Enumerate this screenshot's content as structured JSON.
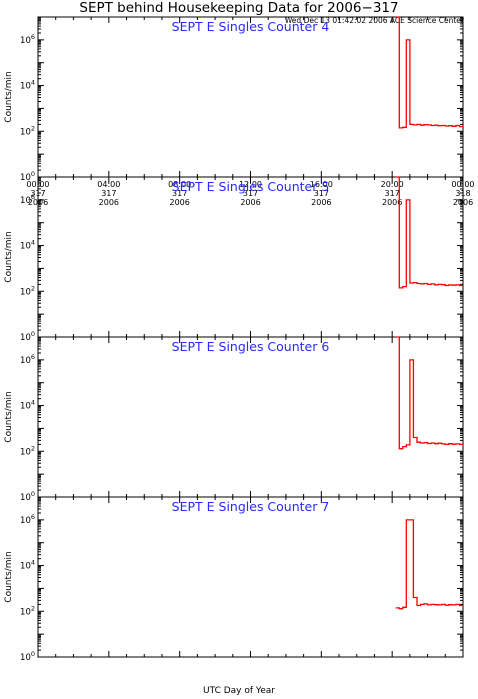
{
  "header": {
    "title": "SEPT behind Housekeeping Data for 2006−317",
    "subtitle": "Wed Dec 13 01:42:02 2006 ACE Science Center"
  },
  "x_axis_title": "UTC Day of Year",
  "colors": {
    "series": "#ff0000",
    "panel_title": "#2a2aff",
    "axes": "#000000"
  },
  "chart_data": [
    {
      "type": "line",
      "title": "SEPT E Singles Counter 4",
      "ylabel": "Counts/min",
      "yscale": "log",
      "ylim": [
        1,
        10000000
      ],
      "ytick_labels": [
        "10^0",
        "10^2",
        "10^4",
        "10^6"
      ],
      "xlim": [
        0,
        24
      ],
      "x_ticks": [
        {
          "time": "00:00",
          "doy": "317",
          "year": "2006"
        },
        {
          "time": "04:00",
          "doy": "317",
          "year": "2006"
        },
        {
          "time": "08:00",
          "doy": "317",
          "year": "2006"
        },
        {
          "time": "12:00",
          "doy": "317",
          "year": "2006"
        },
        {
          "time": "16:00",
          "doy": "317",
          "year": "2006"
        },
        {
          "time": "20:00",
          "doy": "317",
          "year": "2006"
        },
        {
          "time": "00:00",
          "doy": "318",
          "year": "2006"
        }
      ],
      "x": [
        20.2,
        20.4,
        20.6,
        20.8,
        21.0,
        21.2,
        21.4,
        21.6,
        21.8,
        22.0,
        22.2,
        22.4,
        22.6,
        22.8,
        23.0,
        23.2,
        23.4,
        23.6,
        23.8
      ],
      "y": [
        10000000,
        140,
        150,
        1000000,
        200,
        190,
        200,
        185,
        195,
        190,
        180,
        185,
        175,
        180,
        170,
        175,
        165,
        180,
        160
      ]
    },
    {
      "type": "line",
      "title": "SEPT E Singles Counter 5",
      "ylabel": "Counts/min",
      "yscale": "log",
      "ylim": [
        1,
        10000000
      ],
      "ytick_labels": [
        "10^0",
        "10^2",
        "10^4",
        "10^6"
      ],
      "xlim": [
        0,
        24
      ],
      "x_ticks": [],
      "x": [
        20.2,
        20.4,
        20.6,
        20.8,
        21.0,
        21.2,
        21.4,
        21.6,
        21.8,
        22.0,
        22.2,
        22.4,
        22.6,
        22.8,
        23.0,
        23.2,
        23.4,
        23.6,
        23.8
      ],
      "y": [
        10000000,
        140,
        160,
        1000000,
        230,
        240,
        220,
        210,
        220,
        200,
        210,
        190,
        200,
        195,
        180,
        190,
        185,
        190,
        180
      ]
    },
    {
      "type": "line",
      "title": "SEPT E Singles Counter 6",
      "ylabel": "Counts/min",
      "yscale": "log",
      "ylim": [
        1,
        10000000
      ],
      "ytick_labels": [
        "10^0",
        "10^2",
        "10^4",
        "10^6"
      ],
      "xlim": [
        0,
        24
      ],
      "x_ticks": [],
      "x": [
        20.2,
        20.4,
        20.6,
        20.8,
        21.0,
        21.2,
        21.4,
        21.6,
        21.8,
        22.0,
        22.2,
        22.4,
        22.6,
        22.8,
        23.0,
        23.2,
        23.4,
        23.6,
        23.8
      ],
      "y": [
        10000000,
        130,
        160,
        190,
        1000000,
        400,
        250,
        230,
        240,
        220,
        230,
        215,
        225,
        210,
        200,
        215,
        205,
        210,
        200
      ]
    },
    {
      "type": "line",
      "title": "SEPT E Singles Counter 7",
      "ylabel": "Counts/min",
      "yscale": "log",
      "ylim": [
        1,
        10000000
      ],
      "ytick_labels": [
        "10^0",
        "10^2",
        "10^4",
        "10^6"
      ],
      "xlim": [
        0,
        24
      ],
      "x_ticks": [],
      "x": [
        20.2,
        20.4,
        20.6,
        20.8,
        21.0,
        21.2,
        21.4,
        21.6,
        21.8,
        22.0,
        22.2,
        22.4,
        22.6,
        22.8,
        23.0,
        23.2,
        23.4,
        23.6,
        23.8
      ],
      "y": [
        140,
        130,
        150,
        1000000,
        1000000,
        400,
        180,
        200,
        210,
        190,
        200,
        195,
        190,
        200,
        185,
        195,
        190,
        200,
        180
      ]
    }
  ]
}
